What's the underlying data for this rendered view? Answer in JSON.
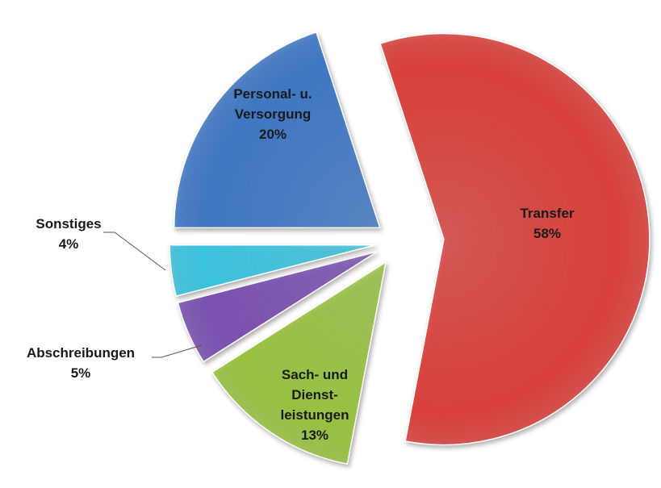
{
  "chart_data": {
    "type": "pie",
    "categories": [
      "Transfer",
      "Sach- und\nDienst-\nleistungen",
      "Abschreibungen",
      "Sonstiges",
      "Personal- u.\nVersorgung"
    ],
    "values": [
      58,
      13,
      5,
      4,
      20
    ],
    "value_labels": [
      "58%",
      "13%",
      "5%",
      "4%",
      "20%"
    ],
    "colors": [
      "#d8403b",
      "#98c142",
      "#7a50b0",
      "#3cc2dc",
      "#3f77c3"
    ],
    "start_angle": -18,
    "exploded": true
  }
}
